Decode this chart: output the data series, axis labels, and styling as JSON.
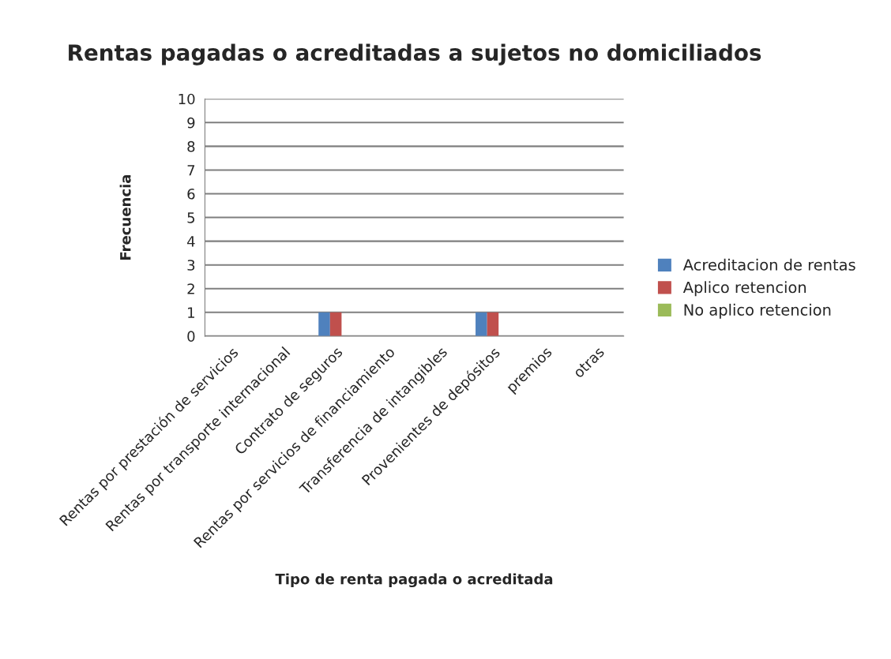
{
  "chart_data": {
    "type": "bar",
    "title": "Rentas pagadas o acreditadas a sujetos no domiciliados",
    "xlabel": "Tipo de renta pagada o acreditada",
    "ylabel": "Frecuencia",
    "categories": [
      "Rentas por prestación de servicios",
      "Rentas por transporte internacional",
      "Contrato de seguros",
      "Rentas por servicios de financiamiento",
      "Transferencia de intangibles",
      "Provenientes de depósitos",
      "premios",
      "otras"
    ],
    "series": [
      {
        "name": "Acreditacion de rentas",
        "color": "#4f81bd",
        "values": [
          0,
          0,
          1,
          0,
          0,
          1,
          0,
          0
        ]
      },
      {
        "name": "Aplico retencion",
        "color": "#c0504d",
        "values": [
          0,
          0,
          1,
          0,
          0,
          1,
          0,
          0
        ]
      },
      {
        "name": "No aplico retencion",
        "color": "#9bbb59",
        "values": [
          0,
          0,
          0,
          0,
          0,
          0,
          0,
          0
        ]
      }
    ],
    "ylim": [
      0,
      10
    ],
    "yticks": [
      0,
      1,
      2,
      3,
      4,
      5,
      6,
      7,
      8,
      9,
      10
    ],
    "grid": "y",
    "legend": "right"
  }
}
